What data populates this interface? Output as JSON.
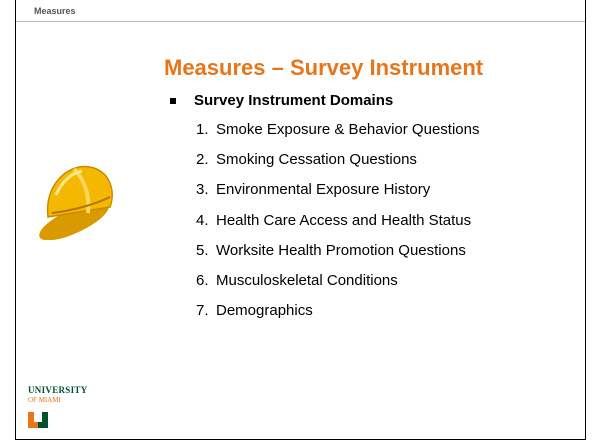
{
  "header": {
    "label": "Measures"
  },
  "title": "Measures – Survey Instrument",
  "bullet": "Survey Instrument Domains",
  "items": [
    {
      "number": "1.",
      "text": "Smoke Exposure & Behavior Questions"
    },
    {
      "number": "2.",
      "text": "Smoking Cessation Questions"
    },
    {
      "number": "3.",
      "text": "Environmental Exposure History"
    },
    {
      "number": "4.",
      "text": "Health Care Access and Health Status"
    },
    {
      "number": "5.",
      "text": "Worksite Health Promotion Questions"
    },
    {
      "number": "6.",
      "text": "Musculoskeletal Conditions"
    },
    {
      "number": "7.",
      "text": "Demographics"
    }
  ],
  "logo": {
    "line1": "UNIVERSITY",
    "line2": "OF MIAMI"
  }
}
